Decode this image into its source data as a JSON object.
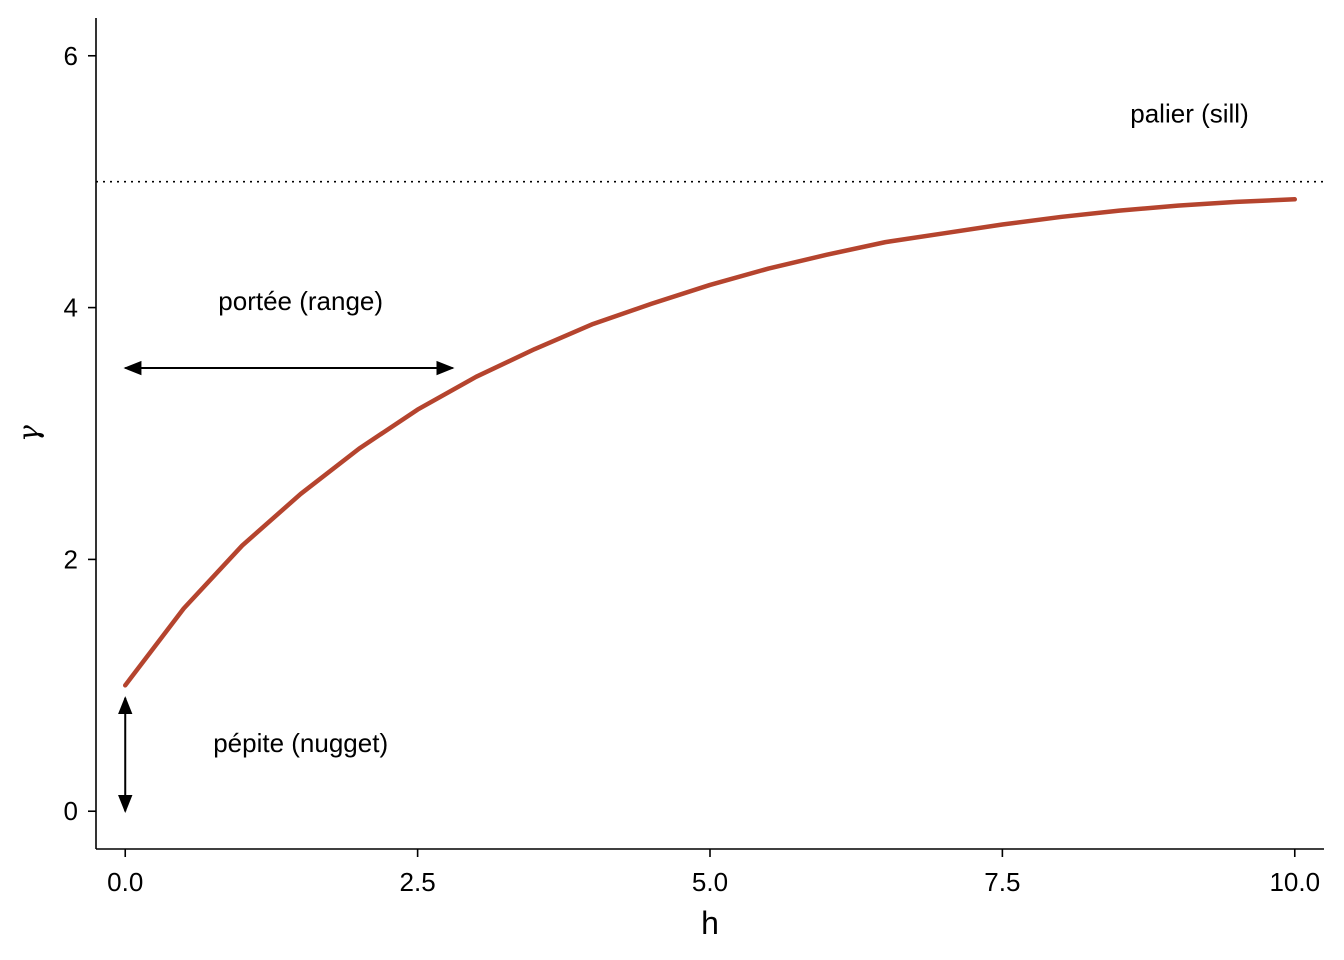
{
  "chart_data": {
    "type": "line",
    "xlabel": "h",
    "ylabel": "γ",
    "xlim": [
      -0.25,
      10.25
    ],
    "ylim": [
      -0.3,
      6.3
    ],
    "x_ticks": [
      0.0,
      2.5,
      5.0,
      7.5,
      10.0
    ],
    "x_tick_labels": [
      "0.0",
      "2.5",
      "5.0",
      "7.5",
      "10.0"
    ],
    "y_ticks": [
      0,
      2,
      4,
      6
    ],
    "y_tick_labels": [
      "0",
      "2",
      "4",
      "6"
    ],
    "grid": false,
    "legend": "none",
    "series": [
      {
        "color": "#b5442e",
        "x": [
          0,
          0.5,
          1,
          1.5,
          2,
          2.5,
          3,
          3.5,
          4,
          4.5,
          5,
          5.5,
          6,
          6.5,
          7,
          7.5,
          8,
          8.5,
          9,
          9.5,
          10
        ],
        "y": [
          1.0,
          1.61,
          2.11,
          2.52,
          2.88,
          3.19,
          3.45,
          3.67,
          3.87,
          4.03,
          4.18,
          4.31,
          4.42,
          4.52,
          4.59,
          4.66,
          4.72,
          4.77,
          4.81,
          4.84,
          4.86
        ]
      }
    ],
    "reference_lines": [
      {
        "orientation": "horizontal",
        "y": 5,
        "style": "dotted",
        "color": "#000000"
      }
    ],
    "annotations": [
      {
        "text": "palier (sill)",
        "x": 9.1,
        "y": 5.47
      },
      {
        "text": "portée (range)",
        "x": 1.5,
        "y": 3.98
      },
      {
        "text": "pépite (nugget)",
        "x": 1.5,
        "y": 0.47
      }
    ],
    "arrows": [
      {
        "label": "range-arrow",
        "from": [
          0,
          3.52
        ],
        "to": [
          2.8,
          3.52
        ],
        "both_ends": true
      },
      {
        "label": "nugget-arrow",
        "from": [
          0,
          0.9
        ],
        "to": [
          0,
          0
        ],
        "both_ends": true
      }
    ]
  }
}
